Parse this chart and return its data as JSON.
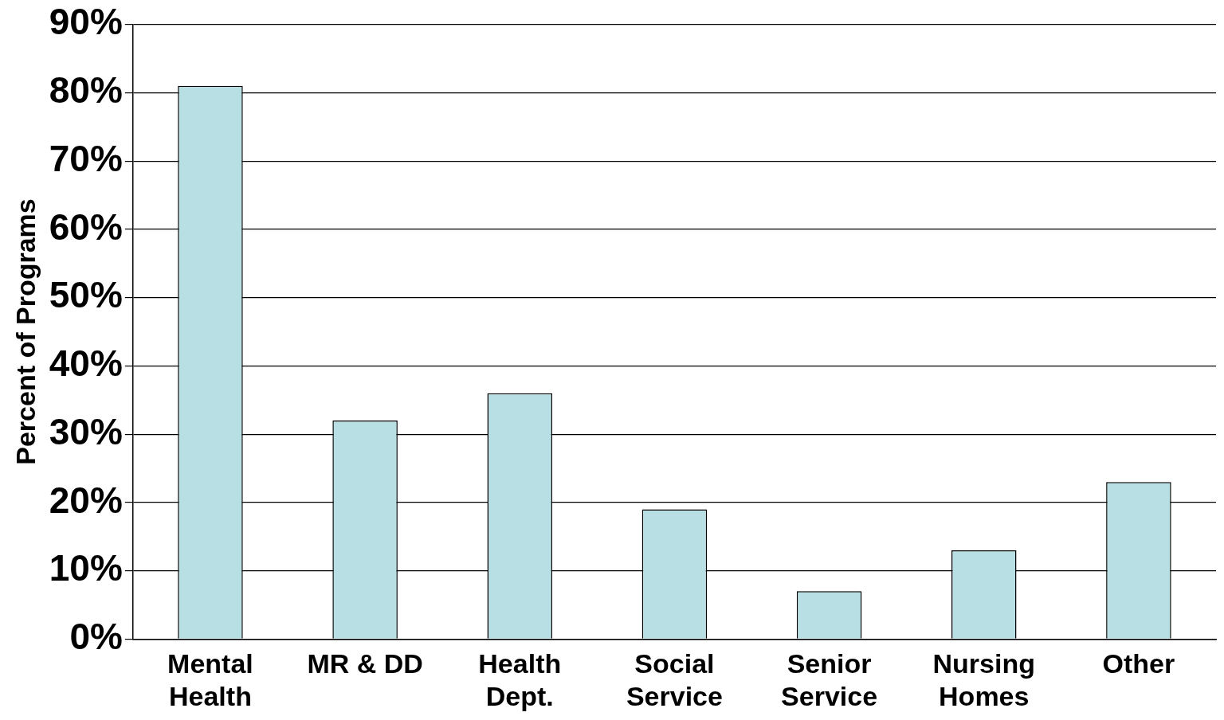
{
  "chart_data": {
    "type": "bar",
    "ylabel": "Percent of Programs",
    "categories": [
      "Mental Health",
      "MR & DD",
      "Health Dept.",
      "Social Service",
      "Senior Service",
      "Nursing Homes",
      "Other"
    ],
    "values": [
      81,
      32,
      36,
      19,
      7,
      13,
      23
    ],
    "color": "#b8e0e4",
    "ylim": [
      0,
      90
    ],
    "yticks": [
      {
        "value": 0,
        "label": "0%"
      },
      {
        "value": 10,
        "label": "10%"
      },
      {
        "value": 20,
        "label": "20%"
      },
      {
        "value": 30,
        "label": "30%"
      },
      {
        "value": 40,
        "label": "40%"
      },
      {
        "value": 50,
        "label": "50%"
      },
      {
        "value": 60,
        "label": "60%"
      },
      {
        "value": 70,
        "label": "70%"
      },
      {
        "value": 80,
        "label": "80%"
      },
      {
        "value": 90,
        "label": "90%"
      }
    ],
    "grid": "y",
    "legend": false
  }
}
